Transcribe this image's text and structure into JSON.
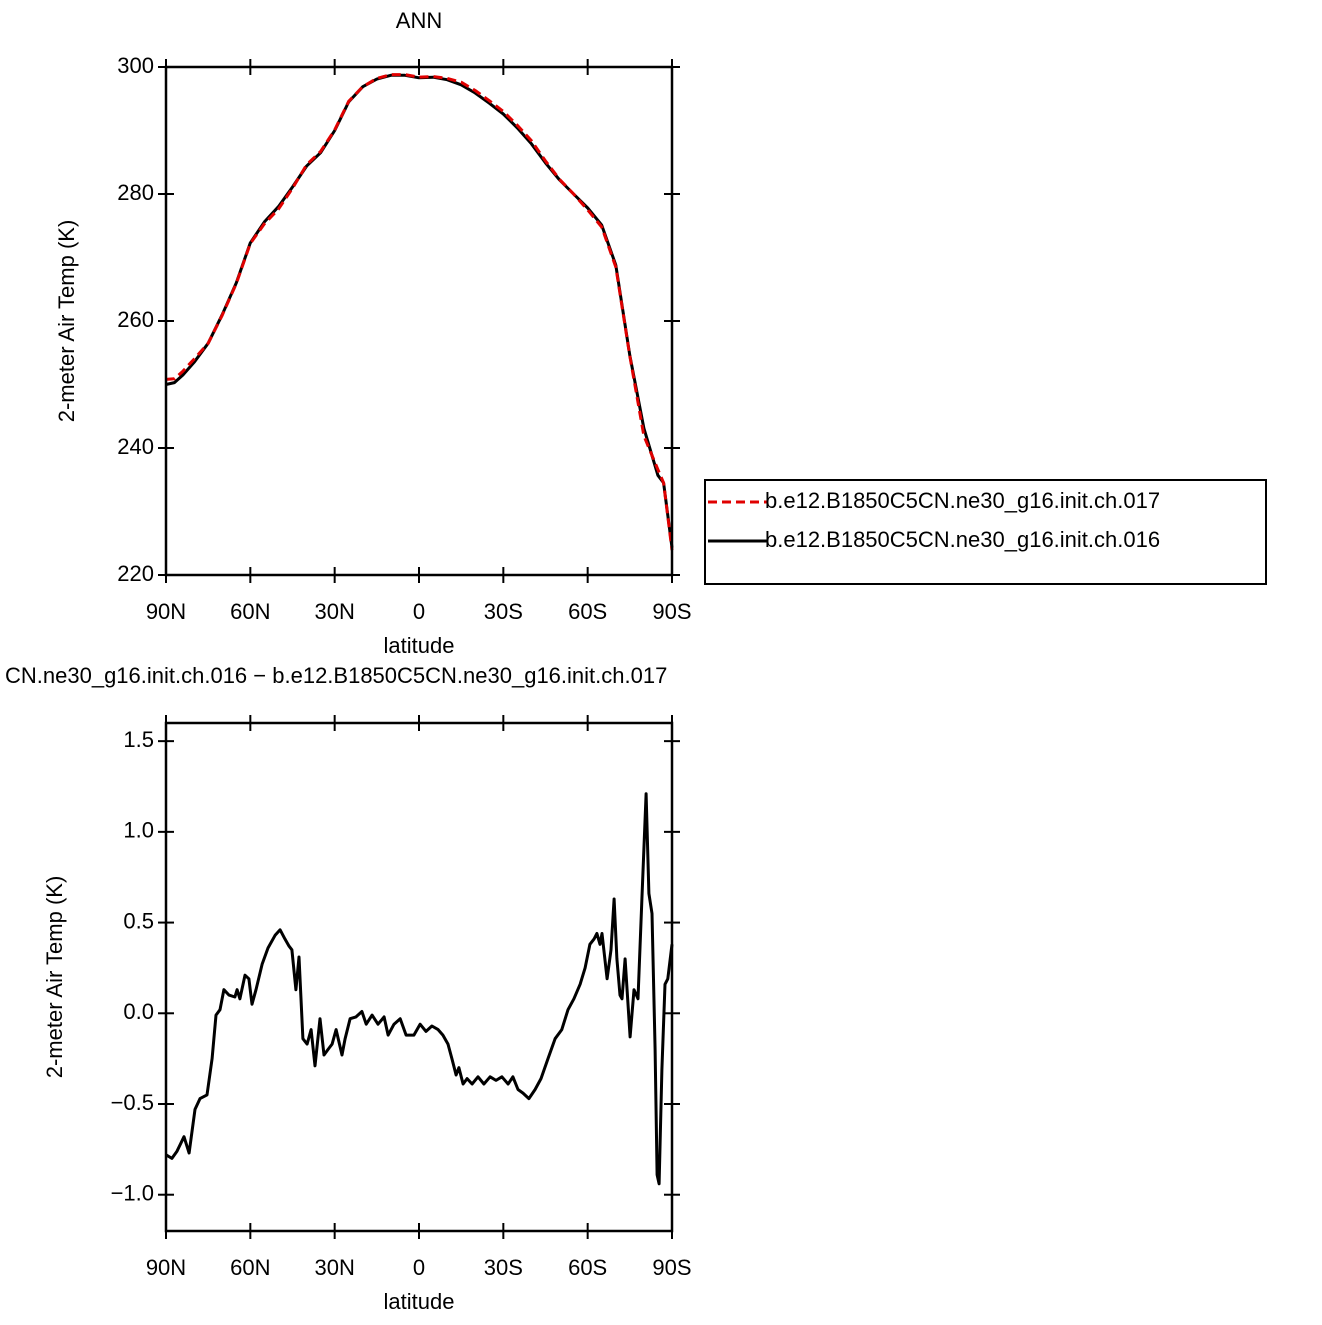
{
  "chart_data": [
    {
      "type": "line",
      "title": "ANN",
      "x_label": "latitude",
      "y_label": "2-meter Air Temp (K)",
      "x": [
        90,
        87,
        84,
        80,
        75,
        70,
        65,
        60,
        55,
        50,
        45,
        40,
        35,
        30,
        25,
        20,
        15,
        10,
        5,
        0,
        -5,
        -10,
        -15,
        -20,
        -25,
        -30,
        -35,
        -40,
        -45,
        -50,
        -55,
        -60,
        -65,
        -70,
        -75,
        -80,
        -85,
        -87,
        -90
      ],
      "series": [
        {
          "name": "b.e12.B1850C5CN.ne30_g16.init.ch.017",
          "color": "#e00000",
          "linestyle": "dashed",
          "values": [
            250.8,
            250.9,
            252.1,
            254.0,
            256.5,
            260.9,
            265.9,
            272.2,
            275.3,
            277.6,
            280.9,
            284.6,
            286.7,
            290.1,
            294.6,
            296.9,
            298.2,
            298.8,
            298.8,
            298.4,
            298.5,
            298.2,
            297.6,
            296.3,
            294.7,
            293.0,
            290.8,
            288.4,
            285.2,
            282.3,
            280.0,
            277.5,
            274.8,
            268.5,
            254.5,
            241.9,
            236.6,
            234.5,
            223.9
          ]
        },
        {
          "name": "b.e12.B1850C5CN.ne30_g16.init.ch.016",
          "color": "#000000",
          "linestyle": "solid",
          "values": [
            250.0,
            250.3,
            251.5,
            253.5,
            256.5,
            261.0,
            266.0,
            272.3,
            275.6,
            278.0,
            281.1,
            284.4,
            286.5,
            290.0,
            294.5,
            296.9,
            298.1,
            298.7,
            298.7,
            298.3,
            298.4,
            298.0,
            297.2,
            295.9,
            294.3,
            292.6,
            290.4,
            287.9,
            284.9,
            282.2,
            280.0,
            277.8,
            275.1,
            268.8,
            254.6,
            243.1,
            235.7,
            234.5,
            224.3
          ]
        }
      ],
      "xlim": [
        90,
        -90
      ],
      "xticks": [
        {
          "value": 90,
          "label": "90N"
        },
        {
          "value": 60,
          "label": "60N"
        },
        {
          "value": 30,
          "label": "30N"
        },
        0,
        {
          "value": -30,
          "label": "30S"
        },
        {
          "value": -60,
          "label": "60S"
        },
        {
          "value": -90,
          "label": "90S"
        }
      ],
      "ylim": [
        220,
        300
      ],
      "yticks": [
        220,
        240,
        260,
        280,
        300
      ],
      "legend": "outside-right"
    },
    {
      "type": "line",
      "title": "CN.ne30_g16.init.ch.016 − b.e12.B1850C5CN.ne30_g16.init.ch.017",
      "x_label": "latitude",
      "y_label": "2-meter Air Temp (K)",
      "x": [
        90,
        87.9,
        86.1,
        83.6,
        81.8,
        79.7,
        77.9,
        75.4,
        73.6,
        72.2,
        70.8,
        69.4,
        67.6,
        65.5,
        64.7,
        63.7,
        61.9,
        60.5,
        59.4,
        58.0,
        55.8,
        53.7,
        51.2,
        49.4,
        47.7,
        46.2,
        45.2,
        43.8,
        42.7,
        41.3,
        39.8,
        38.4,
        37.0,
        35.2,
        33.8,
        32.4,
        30.9,
        29.5,
        27.4,
        26.3,
        24.5,
        22.4,
        20.3,
        18.8,
        16.7,
        14.6,
        12.4,
        11.0,
        8.9,
        6.7,
        4.6,
        1.8,
        -0.4,
        -2.5,
        -4.6,
        -6.8,
        -8.5,
        -10.3,
        -11.7,
        -13.2,
        -14.2,
        -15.7,
        -17.1,
        -18.9,
        -21.0,
        -23.1,
        -25.3,
        -27.4,
        -29.5,
        -31.7,
        -33.4,
        -35.2,
        -37.0,
        -39.1,
        -41.3,
        -43.4,
        -45.9,
        -48.4,
        -50.8,
        -53.0,
        -55.1,
        -57.3,
        -59.1,
        -60.8,
        -62.3,
        -63.3,
        -64.4,
        -65.1,
        -66.9,
        -68.3,
        -69.4,
        -70.4,
        -71.5,
        -72.2,
        -73.3,
        -75.1,
        -76.5,
        -77.9,
        -79.3,
        -80.8,
        -81.8,
        -82.9,
        -84.0,
        -84.7,
        -85.4,
        -86.4,
        -87.5,
        -88.5,
        -90
      ],
      "series": [
        {
          "color": "#000000",
          "linestyle": "solid",
          "values": [
            -0.78,
            -0.8,
            -0.76,
            -0.68,
            -0.77,
            -0.53,
            -0.47,
            -0.45,
            -0.25,
            -0.01,
            0.02,
            0.13,
            0.1,
            0.09,
            0.13,
            0.08,
            0.21,
            0.19,
            0.05,
            0.13,
            0.27,
            0.36,
            0.43,
            0.46,
            0.41,
            0.37,
            0.35,
            0.13,
            0.31,
            -0.14,
            -0.17,
            -0.09,
            -0.29,
            -0.03,
            -0.23,
            -0.2,
            -0.17,
            -0.09,
            -0.23,
            -0.14,
            -0.03,
            -0.02,
            0.01,
            -0.06,
            -0.01,
            -0.06,
            -0.02,
            -0.12,
            -0.06,
            -0.03,
            -0.12,
            -0.12,
            -0.06,
            -0.1,
            -0.07,
            -0.09,
            -0.12,
            -0.17,
            -0.25,
            -0.34,
            -0.3,
            -0.39,
            -0.36,
            -0.39,
            -0.35,
            -0.39,
            -0.35,
            -0.37,
            -0.35,
            -0.39,
            -0.35,
            -0.42,
            -0.44,
            -0.47,
            -0.42,
            -0.36,
            -0.25,
            -0.14,
            -0.09,
            0.02,
            0.08,
            0.16,
            0.25,
            0.38,
            0.41,
            0.44,
            0.38,
            0.44,
            0.19,
            0.35,
            0.63,
            0.3,
            0.1,
            0.08,
            0.3,
            -0.13,
            0.13,
            0.08,
            0.63,
            1.21,
            0.66,
            0.55,
            -0.2,
            -0.89,
            -0.94,
            -0.31,
            0.16,
            0.19,
            0.38
          ]
        }
      ],
      "xlim": [
        90,
        -90
      ],
      "xticks": [
        {
          "value": 90,
          "label": "90N"
        },
        {
          "value": 60,
          "label": "60N"
        },
        {
          "value": 30,
          "label": "30N"
        },
        0,
        {
          "value": -30,
          "label": "30S"
        },
        {
          "value": -60,
          "label": "60S"
        },
        {
          "value": -90,
          "label": "90S"
        }
      ],
      "ylim": [
        -1.2,
        1.6
      ],
      "yticks": [
        {
          "value": -1,
          "label": "−1.0"
        },
        {
          "value": -0.5,
          "label": "−0.5"
        },
        {
          "value": 0,
          "label": "0.0"
        },
        0.5,
        {
          "value": 1,
          "label": "1.0"
        },
        1.5
      ]
    }
  ]
}
